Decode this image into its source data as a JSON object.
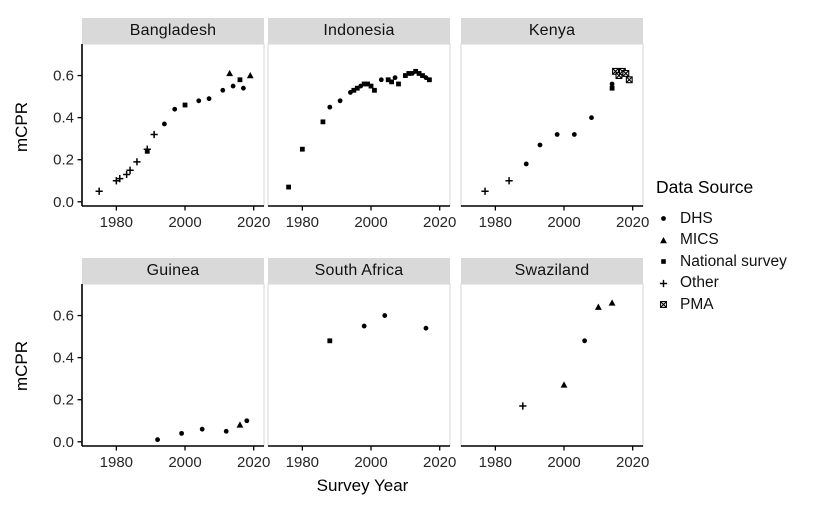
{
  "figure": {
    "background": "#ffffff",
    "strip_background": "#D9D9D9",
    "panel_border_color": "#dcdcdc",
    "axis_color": "#000000",
    "marker_color": "#000000"
  },
  "chart_data": {
    "type": "scatter",
    "title": "",
    "xlabel": "Survey Year",
    "ylabel": "mCPR",
    "x_ticks": [
      1980,
      2000,
      2020
    ],
    "y_ticks": [
      0.0,
      0.2,
      0.4,
      0.6
    ],
    "xlim": [
      1970,
      2023
    ],
    "ylim": [
      -0.02,
      0.75
    ],
    "grid": false,
    "facets": [
      {
        "title": "Bangladesh",
        "points": [
          {
            "x": 1975,
            "y": 0.05,
            "source": "Other"
          },
          {
            "x": 1980,
            "y": 0.1,
            "source": "Other"
          },
          {
            "x": 1981,
            "y": 0.11,
            "source": "Other"
          },
          {
            "x": 1983,
            "y": 0.13,
            "source": "Other"
          },
          {
            "x": 1984,
            "y": 0.15,
            "source": "Other"
          },
          {
            "x": 1986,
            "y": 0.19,
            "source": "Other"
          },
          {
            "x": 1989,
            "y": 0.25,
            "source": "Other"
          },
          {
            "x": 1989,
            "y": 0.24,
            "source": "National survey"
          },
          {
            "x": 1991,
            "y": 0.32,
            "source": "Other"
          },
          {
            "x": 1994,
            "y": 0.37,
            "source": "DHS"
          },
          {
            "x": 1997,
            "y": 0.44,
            "source": "DHS"
          },
          {
            "x": 2000,
            "y": 0.46,
            "source": "National survey"
          },
          {
            "x": 2004,
            "y": 0.48,
            "source": "DHS"
          },
          {
            "x": 2007,
            "y": 0.49,
            "source": "DHS"
          },
          {
            "x": 2011,
            "y": 0.53,
            "source": "DHS"
          },
          {
            "x": 2013,
            "y": 0.61,
            "source": "MICS"
          },
          {
            "x": 2014,
            "y": 0.55,
            "source": "DHS"
          },
          {
            "x": 2016,
            "y": 0.58,
            "source": "National survey"
          },
          {
            "x": 2017,
            "y": 0.54,
            "source": "DHS"
          },
          {
            "x": 2019,
            "y": 0.6,
            "source": "MICS"
          }
        ]
      },
      {
        "title": "Indonesia",
        "points": [
          {
            "x": 1976,
            "y": 0.07,
            "source": "National survey"
          },
          {
            "x": 1980,
            "y": 0.25,
            "source": "National survey"
          },
          {
            "x": 1986,
            "y": 0.38,
            "source": "National survey"
          },
          {
            "x": 1988,
            "y": 0.45,
            "source": "DHS"
          },
          {
            "x": 1991,
            "y": 0.48,
            "source": "DHS"
          },
          {
            "x": 1994,
            "y": 0.52,
            "source": "DHS"
          },
          {
            "x": 1995,
            "y": 0.53,
            "source": "National survey"
          },
          {
            "x": 1996,
            "y": 0.54,
            "source": "National survey"
          },
          {
            "x": 1997,
            "y": 0.55,
            "source": "DHS"
          },
          {
            "x": 1998,
            "y": 0.56,
            "source": "National survey"
          },
          {
            "x": 1999,
            "y": 0.56,
            "source": "National survey"
          },
          {
            "x": 2000,
            "y": 0.55,
            "source": "National survey"
          },
          {
            "x": 2001,
            "y": 0.53,
            "source": "National survey"
          },
          {
            "x": 2003,
            "y": 0.58,
            "source": "DHS"
          },
          {
            "x": 2005,
            "y": 0.58,
            "source": "National survey"
          },
          {
            "x": 2006,
            "y": 0.57,
            "source": "National survey"
          },
          {
            "x": 2007,
            "y": 0.59,
            "source": "DHS"
          },
          {
            "x": 2008,
            "y": 0.56,
            "source": "National survey"
          },
          {
            "x": 2010,
            "y": 0.6,
            "source": "National survey"
          },
          {
            "x": 2011,
            "y": 0.61,
            "source": "National survey"
          },
          {
            "x": 2012,
            "y": 0.61,
            "source": "DHS"
          },
          {
            "x": 2013,
            "y": 0.62,
            "source": "National survey"
          },
          {
            "x": 2014,
            "y": 0.61,
            "source": "National survey"
          },
          {
            "x": 2015,
            "y": 0.6,
            "source": "National survey"
          },
          {
            "x": 2016,
            "y": 0.59,
            "source": "DHS"
          },
          {
            "x": 2017,
            "y": 0.58,
            "source": "National survey"
          }
        ]
      },
      {
        "title": "Kenya",
        "points": [
          {
            "x": 1977,
            "y": 0.05,
            "source": "Other"
          },
          {
            "x": 1984,
            "y": 0.1,
            "source": "Other"
          },
          {
            "x": 1989,
            "y": 0.18,
            "source": "DHS"
          },
          {
            "x": 1993,
            "y": 0.27,
            "source": "DHS"
          },
          {
            "x": 1998,
            "y": 0.32,
            "source": "DHS"
          },
          {
            "x": 2003,
            "y": 0.32,
            "source": "DHS"
          },
          {
            "x": 2008,
            "y": 0.4,
            "source": "DHS"
          },
          {
            "x": 2014,
            "y": 0.56,
            "source": "DHS"
          },
          {
            "x": 2014,
            "y": 0.54,
            "source": "National survey"
          },
          {
            "x": 2015,
            "y": 0.62,
            "source": "PMA"
          },
          {
            "x": 2016,
            "y": 0.6,
            "source": "PMA"
          },
          {
            "x": 2017,
            "y": 0.62,
            "source": "PMA"
          },
          {
            "x": 2018,
            "y": 0.61,
            "source": "PMA"
          },
          {
            "x": 2019,
            "y": 0.58,
            "source": "PMA"
          }
        ]
      },
      {
        "title": "Guinea",
        "points": [
          {
            "x": 1992,
            "y": 0.01,
            "source": "DHS"
          },
          {
            "x": 1999,
            "y": 0.04,
            "source": "DHS"
          },
          {
            "x": 2005,
            "y": 0.06,
            "source": "DHS"
          },
          {
            "x": 2012,
            "y": 0.05,
            "source": "DHS"
          },
          {
            "x": 2016,
            "y": 0.08,
            "source": "MICS"
          },
          {
            "x": 2018,
            "y": 0.1,
            "source": "DHS"
          }
        ]
      },
      {
        "title": "South Africa",
        "points": [
          {
            "x": 1988,
            "y": 0.48,
            "source": "National survey"
          },
          {
            "x": 1998,
            "y": 0.55,
            "source": "DHS"
          },
          {
            "x": 2004,
            "y": 0.6,
            "source": "DHS"
          },
          {
            "x": 2016,
            "y": 0.54,
            "source": "DHS"
          }
        ]
      },
      {
        "title": "Swaziland",
        "points": [
          {
            "x": 1988,
            "y": 0.17,
            "source": "Other"
          },
          {
            "x": 2000,
            "y": 0.27,
            "source": "MICS"
          },
          {
            "x": 2006,
            "y": 0.48,
            "source": "DHS"
          },
          {
            "x": 2010,
            "y": 0.64,
            "source": "MICS"
          },
          {
            "x": 2014,
            "y": 0.66,
            "source": "MICS"
          }
        ]
      }
    ],
    "legend": {
      "title": "Data Source",
      "position": "right",
      "entries": [
        {
          "label": "DHS",
          "shape": "circle"
        },
        {
          "label": "MICS",
          "shape": "triangle"
        },
        {
          "label": "National survey",
          "shape": "square"
        },
        {
          "label": "Other",
          "shape": "plus"
        },
        {
          "label": "PMA",
          "shape": "square-cross"
        }
      ]
    }
  }
}
